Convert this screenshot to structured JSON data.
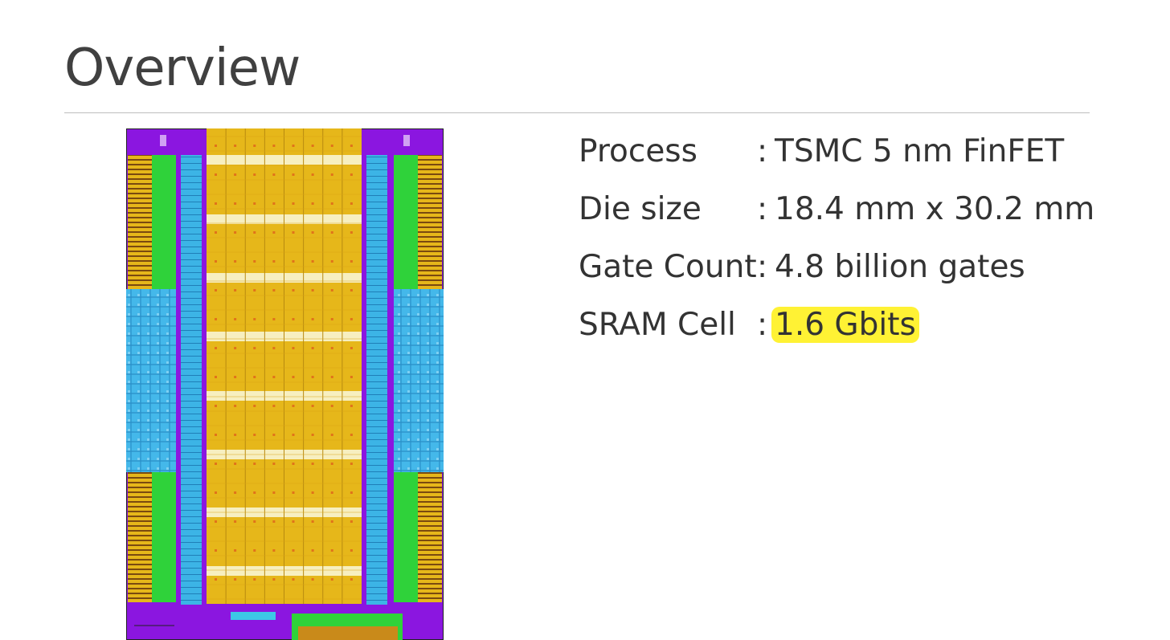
{
  "slide": {
    "title": "Overview"
  },
  "figure": {
    "name": "chip die floorplan"
  },
  "specs": [
    {
      "label": "Process",
      "value": "TSMC 5 nm FinFET",
      "highlighted": false
    },
    {
      "label": "Die size",
      "value": "18.4 mm x 30.2 mm",
      "highlighted": false
    },
    {
      "label": "Gate Count",
      "value": "4.8 billion gates",
      "highlighted": false
    },
    {
      "label": "SRAM Cell",
      "value": "1.6 Gbits",
      "highlighted": true
    }
  ],
  "separator": ":",
  "colors": {
    "highlight": "#fff234",
    "die_purple": "#8b16e0",
    "die_gold": "#e6b71a",
    "die_blue": "#3db3e8",
    "die_green": "#2fd23a"
  }
}
